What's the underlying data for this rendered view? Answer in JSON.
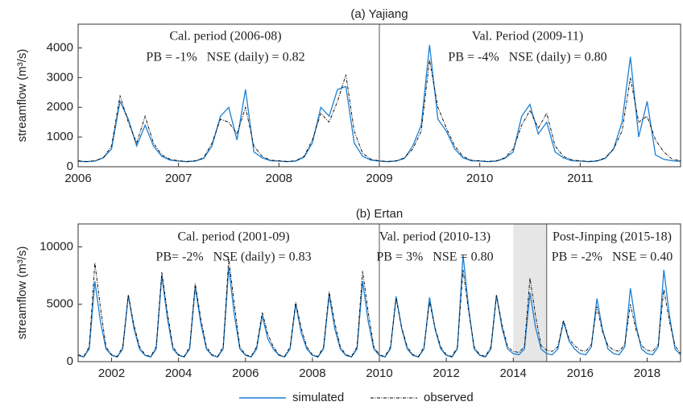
{
  "chart_data": [
    {
      "type": "line",
      "title": "(a) Yajiang",
      "ylabel": "streamflow (m³/s)",
      "xlim": [
        2006,
        2012
      ],
      "xticks": [
        2006,
        2007,
        2008,
        2009,
        2010,
        2011
      ],
      "ylim": [
        0,
        4800
      ],
      "yticks": [
        0,
        1000,
        2000,
        3000,
        4000
      ],
      "x": [
        2006,
        2006.083,
        2006.167,
        2006.25,
        2006.333,
        2006.417,
        2006.5,
        2006.583,
        2006.667,
        2006.75,
        2006.833,
        2006.917,
        2007,
        2007.083,
        2007.167,
        2007.25,
        2007.333,
        2007.417,
        2007.5,
        2007.583,
        2007.667,
        2007.75,
        2007.833,
        2007.917,
        2008,
        2008.083,
        2008.167,
        2008.25,
        2008.333,
        2008.417,
        2008.5,
        2008.583,
        2008.667,
        2008.75,
        2008.833,
        2008.917,
        2009,
        2009.083,
        2009.167,
        2009.25,
        2009.333,
        2009.417,
        2009.5,
        2009.583,
        2009.667,
        2009.75,
        2009.833,
        2009.917,
        2010,
        2010.083,
        2010.167,
        2010.25,
        2010.333,
        2010.417,
        2010.5,
        2010.583,
        2010.667,
        2010.75,
        2010.833,
        2010.917,
        2011,
        2011.083,
        2011.167,
        2011.25,
        2011.333,
        2011.417,
        2011.5,
        2011.583,
        2011.667,
        2011.75,
        2011.833,
        2011.917,
        2012
      ],
      "series": [
        {
          "color": "#1a7fd4",
          "style": "solid",
          "values": [
            180,
            170,
            190,
            300,
            600,
            2200,
            1600,
            700,
            1400,
            700,
            350,
            220,
            190,
            170,
            190,
            280,
            700,
            1700,
            2000,
            900,
            2600,
            500,
            300,
            200,
            190,
            170,
            190,
            320,
            800,
            2000,
            1700,
            2600,
            2700,
            800,
            350,
            220,
            190,
            170,
            190,
            280,
            700,
            1400,
            4100,
            1600,
            1200,
            600,
            300,
            200,
            190,
            170,
            190,
            280,
            500,
            1700,
            2100,
            1100,
            1500,
            500,
            300,
            200,
            190,
            170,
            190,
            280,
            600,
            1500,
            3700,
            1000,
            2200,
            400,
            250,
            200,
            180
          ]
        },
        {
          "color": "#000000",
          "style": "dashdot",
          "values": [
            200,
            180,
            200,
            300,
            700,
            2400,
            1500,
            800,
            1700,
            800,
            400,
            250,
            200,
            180,
            200,
            300,
            800,
            1600,
            1500,
            1100,
            2000,
            700,
            350,
            220,
            200,
            180,
            200,
            350,
            900,
            1800,
            1500,
            2200,
            3100,
            1200,
            450,
            250,
            200,
            180,
            200,
            300,
            600,
            1200,
            3600,
            2000,
            1300,
            700,
            350,
            220,
            200,
            180,
            200,
            300,
            600,
            1400,
            1900,
            1300,
            1800,
            700,
            350,
            230,
            200,
            180,
            200,
            300,
            600,
            1200,
            3000,
            1500,
            1700,
            900,
            500,
            250,
            200
          ]
        }
      ],
      "dividers": [
        2009
      ],
      "annotations": [
        "Cal. period (2006-08)",
        "PB = -1%   NSE (daily) = 0.82",
        "Val. Period (2009-11)",
        "PB = -4%   NSE (daily) = 0.80"
      ]
    },
    {
      "type": "line",
      "title": "(b) Ertan",
      "ylabel": "streamflow (m³/s)",
      "xlim": [
        2001,
        2019
      ],
      "xticks": [
        2002,
        2004,
        2006,
        2008,
        2010,
        2012,
        2014,
        2016,
        2018
      ],
      "ylim": [
        0,
        12000
      ],
      "yticks": [
        0,
        5000,
        10000
      ],
      "x": [
        2001,
        2001.167,
        2001.333,
        2001.5,
        2001.667,
        2001.833,
        2002,
        2002.167,
        2002.333,
        2002.5,
        2002.667,
        2002.833,
        2003,
        2003.167,
        2003.333,
        2003.5,
        2003.667,
        2003.833,
        2004,
        2004.167,
        2004.333,
        2004.5,
        2004.667,
        2004.833,
        2005,
        2005.167,
        2005.333,
        2005.5,
        2005.667,
        2005.833,
        2006,
        2006.167,
        2006.333,
        2006.5,
        2006.667,
        2006.833,
        2007,
        2007.167,
        2007.333,
        2007.5,
        2007.667,
        2007.833,
        2008,
        2008.167,
        2008.333,
        2008.5,
        2008.667,
        2008.833,
        2009,
        2009.167,
        2009.333,
        2009.5,
        2009.667,
        2009.833,
        2010,
        2010.167,
        2010.333,
        2010.5,
        2010.667,
        2010.833,
        2011,
        2011.167,
        2011.333,
        2011.5,
        2011.667,
        2011.833,
        2012,
        2012.167,
        2012.333,
        2012.5,
        2012.667,
        2012.833,
        2013,
        2013.167,
        2013.333,
        2013.5,
        2013.667,
        2013.833,
        2014,
        2014.167,
        2014.333,
        2014.5,
        2014.667,
        2014.833,
        2015,
        2015.167,
        2015.333,
        2015.5,
        2015.667,
        2015.833,
        2016,
        2016.167,
        2016.333,
        2016.5,
        2016.667,
        2016.833,
        2017,
        2017.167,
        2017.333,
        2017.5,
        2017.667,
        2017.833,
        2018,
        2018.167,
        2018.333,
        2018.5,
        2018.667,
        2018.833,
        2019
      ],
      "series": [
        {
          "name": "simulated",
          "color": "#1a7fd4",
          "style": "solid",
          "values": [
            550,
            400,
            1100,
            7000,
            3500,
            1100,
            550,
            400,
            1100,
            5800,
            2900,
            1100,
            550,
            400,
            1100,
            7500,
            3800,
            1100,
            550,
            400,
            1100,
            6500,
            3300,
            1100,
            550,
            400,
            1100,
            8200,
            4100,
            1100,
            550,
            400,
            1100,
            4000,
            2000,
            1100,
            550,
            400,
            1100,
            5000,
            2500,
            1100,
            550,
            400,
            1100,
            5800,
            2900,
            1100,
            550,
            400,
            1100,
            7000,
            3500,
            1100,
            550,
            400,
            1100,
            5700,
            2900,
            1100,
            550,
            400,
            1100,
            5600,
            2800,
            1100,
            550,
            400,
            1100,
            9300,
            4700,
            1100,
            550,
            400,
            1100,
            5800,
            2900,
            1100,
            700,
            600,
            1100,
            6000,
            3000,
            1100,
            700,
            600,
            1100,
            3500,
            1800,
            1100,
            700,
            600,
            1300,
            5500,
            2800,
            1100,
            700,
            600,
            1300,
            6400,
            3200,
            1100,
            700,
            600,
            1300,
            8000,
            4000,
            1100,
            600
          ]
        },
        {
          "name": "observed",
          "color": "#000000",
          "style": "dashdot",
          "values": [
            600,
            450,
            1300,
            8600,
            4700,
            1300,
            600,
            450,
            1300,
            5800,
            3200,
            1300,
            600,
            450,
            1300,
            7800,
            4300,
            1300,
            600,
            450,
            1300,
            6800,
            3700,
            1300,
            600,
            450,
            1300,
            9000,
            5000,
            1300,
            600,
            450,
            1300,
            4300,
            2400,
            1300,
            600,
            450,
            1300,
            5200,
            2900,
            1300,
            600,
            450,
            1300,
            6100,
            3400,
            1300,
            600,
            450,
            1300,
            7900,
            4300,
            1300,
            600,
            450,
            1300,
            5500,
            3000,
            1300,
            600,
            450,
            1300,
            5200,
            2900,
            1300,
            600,
            450,
            1300,
            8000,
            4400,
            1300,
            600,
            450,
            1300,
            5800,
            3200,
            1300,
            900,
            800,
            1300,
            7300,
            4000,
            1400,
            1000,
            900,
            1300,
            3600,
            2000,
            1400,
            1000,
            900,
            1500,
            4800,
            2600,
            1400,
            1000,
            900,
            1500,
            5000,
            2800,
            1400,
            1000,
            900,
            1500,
            6300,
            3500,
            1400,
            700
          ]
        }
      ],
      "dividers": [
        2010,
        2015
      ],
      "shaded": [
        2014,
        2015
      ],
      "annotations": [
        "Cal. period (2001-09)",
        "PB= -2%   NSE (daily) = 0.83",
        "Val. period (2010-13)",
        "PB = 3%   NSE = 0.80",
        "Post-Jinping (2015-18)",
        "PB = -2%   NSE = 0.40"
      ]
    }
  ]
}
